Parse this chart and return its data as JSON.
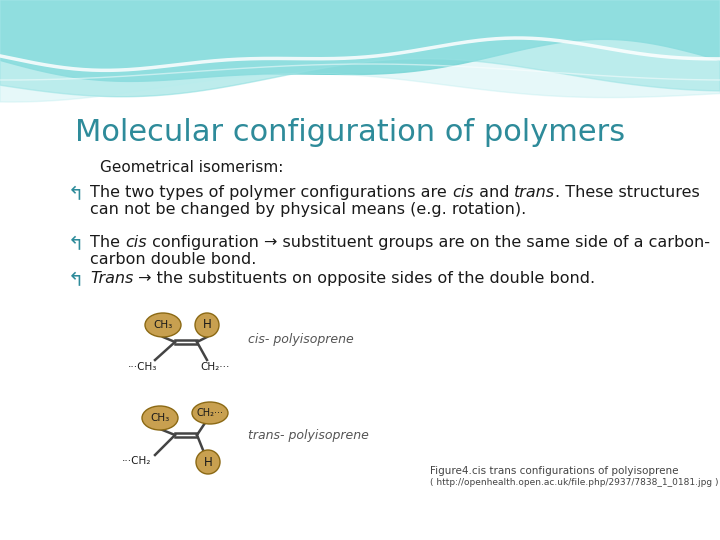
{
  "title": "Molecular configuration of polymers",
  "title_color": "#2E8B9A",
  "title_fontsize": 22,
  "subtitle": "Geometrical isomerism:",
  "subtitle_fontsize": 11,
  "bullet_color": "#2E8B9A",
  "body_color": "#1a1a1a",
  "bg_color": "#FFFFFF",
  "caption_text": "Figure4.cis trans configurations of polyisoprene",
  "url_text": "( http://openhealth.open.ac.uk/file.php/2937/7838_1_0181.jpg )",
  "bullet1_parts": [
    [
      "The two types of polymer configurations are ",
      false
    ],
    [
      "cis",
      true
    ],
    [
      " and ",
      false
    ],
    [
      "trans",
      true
    ],
    [
      ". These structures",
      false
    ]
  ],
  "bullet1_line2": "can not be changed by physical means (e.g. rotation).",
  "bullet2_parts": [
    [
      "The ",
      false
    ],
    [
      "cis",
      true
    ],
    [
      " configuration → substituent groups are on the same side of a carbon-",
      false
    ]
  ],
  "bullet2_line2": "carbon double bond.",
  "bullet3_parts": [
    [
      "Trans",
      true
    ],
    [
      " → the substituents on opposite sides of the double bond.",
      false
    ]
  ],
  "cis_label": "cis- polyisoprene",
  "trans_label": "trans- polyisoprene",
  "mol_color": "#C8A050",
  "mol_edge_color": "#8B6914",
  "mol_text_color": "#1a1a1a",
  "bond_color": "#444444"
}
